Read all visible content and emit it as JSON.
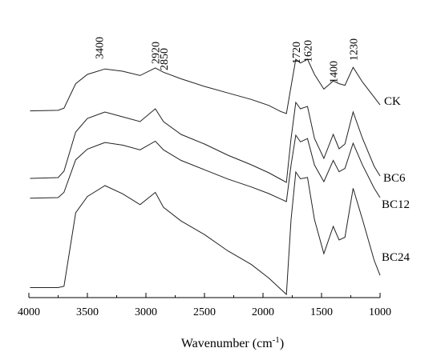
{
  "chart_data": {
    "type": "line",
    "xlabel": "Wavenumber (cm",
    "xlabel_sup": "-1",
    "xlabel_close": ")",
    "xlim": [
      4000,
      1000
    ],
    "x_reversed": true,
    "x_ticks": [
      4000,
      3500,
      3000,
      2500,
      2000,
      1500,
      1000
    ],
    "y_axis_visible": false,
    "grid": false,
    "peak_labels": [
      "3400",
      "2920",
      "2850",
      "1720",
      "1620",
      "1400",
      "1230"
    ],
    "peak_positions": [
      3400,
      2920,
      2850,
      1720,
      1620,
      1400,
      1230
    ],
    "series": [
      {
        "name": "CK",
        "points": [
          [
            3990,
            0.05
          ],
          [
            3750,
            0.06
          ],
          [
            3700,
            0.1
          ],
          [
            3600,
            0.55
          ],
          [
            3500,
            0.72
          ],
          [
            3350,
            0.82
          ],
          [
            3200,
            0.78
          ],
          [
            3050,
            0.7
          ],
          [
            2920,
            0.84
          ],
          [
            2850,
            0.76
          ],
          [
            2700,
            0.64
          ],
          [
            2500,
            0.5
          ],
          [
            2300,
            0.38
          ],
          [
            2100,
            0.26
          ],
          [
            1950,
            0.15
          ],
          [
            1850,
            0.04
          ],
          [
            1800,
            0.0
          ],
          [
            1760,
            0.5
          ],
          [
            1720,
            1.0
          ],
          [
            1680,
            0.93
          ],
          [
            1620,
            1.0
          ],
          [
            1560,
            0.72
          ],
          [
            1480,
            0.45
          ],
          [
            1400,
            0.6
          ],
          [
            1350,
            0.55
          ],
          [
            1300,
            0.52
          ],
          [
            1230,
            0.85
          ],
          [
            1150,
            0.58
          ],
          [
            1050,
            0.3
          ],
          [
            1000,
            0.16
          ]
        ]
      },
      {
        "name": "BC6",
        "points": [
          [
            3990,
            0.05
          ],
          [
            3750,
            0.06
          ],
          [
            3700,
            0.14
          ],
          [
            3600,
            0.63
          ],
          [
            3500,
            0.8
          ],
          [
            3350,
            0.88
          ],
          [
            3200,
            0.82
          ],
          [
            3050,
            0.76
          ],
          [
            2920,
            0.92
          ],
          [
            2850,
            0.76
          ],
          [
            2700,
            0.6
          ],
          [
            2500,
            0.48
          ],
          [
            2300,
            0.34
          ],
          [
            2100,
            0.22
          ],
          [
            1950,
            0.12
          ],
          [
            1850,
            0.04
          ],
          [
            1800,
            0.0
          ],
          [
            1760,
            0.55
          ],
          [
            1720,
            1.0
          ],
          [
            1680,
            0.92
          ],
          [
            1620,
            0.95
          ],
          [
            1560,
            0.55
          ],
          [
            1480,
            0.3
          ],
          [
            1400,
            0.6
          ],
          [
            1350,
            0.42
          ],
          [
            1300,
            0.48
          ],
          [
            1230,
            0.88
          ],
          [
            1150,
            0.55
          ],
          [
            1050,
            0.2
          ],
          [
            1000,
            0.08
          ]
        ]
      },
      {
        "name": "BC12",
        "points": [
          [
            3990,
            0.05
          ],
          [
            3750,
            0.06
          ],
          [
            3700,
            0.14
          ],
          [
            3600,
            0.63
          ],
          [
            3500,
            0.79
          ],
          [
            3350,
            0.89
          ],
          [
            3200,
            0.85
          ],
          [
            3050,
            0.78
          ],
          [
            2920,
            0.91
          ],
          [
            2850,
            0.78
          ],
          [
            2700,
            0.62
          ],
          [
            2500,
            0.48
          ],
          [
            2300,
            0.34
          ],
          [
            2100,
            0.22
          ],
          [
            1950,
            0.12
          ],
          [
            1850,
            0.04
          ],
          [
            1800,
            0.0
          ],
          [
            1760,
            0.55
          ],
          [
            1720,
            1.0
          ],
          [
            1680,
            0.9
          ],
          [
            1620,
            0.95
          ],
          [
            1560,
            0.55
          ],
          [
            1480,
            0.3
          ],
          [
            1400,
            0.62
          ],
          [
            1350,
            0.45
          ],
          [
            1300,
            0.5
          ],
          [
            1230,
            0.88
          ],
          [
            1150,
            0.55
          ],
          [
            1050,
            0.2
          ],
          [
            1000,
            0.06
          ]
        ]
      },
      {
        "name": "BC24",
        "points": [
          [
            3990,
            0.05
          ],
          [
            3750,
            0.05
          ],
          [
            3700,
            0.06
          ],
          [
            3600,
            0.6
          ],
          [
            3500,
            0.72
          ],
          [
            3350,
            0.8
          ],
          [
            3200,
            0.74
          ],
          [
            3050,
            0.66
          ],
          [
            2920,
            0.75
          ],
          [
            2850,
            0.64
          ],
          [
            2700,
            0.54
          ],
          [
            2500,
            0.44
          ],
          [
            2300,
            0.32
          ],
          [
            2100,
            0.22
          ],
          [
            1950,
            0.12
          ],
          [
            1850,
            0.04
          ],
          [
            1800,
            0.0
          ],
          [
            1760,
            0.55
          ],
          [
            1720,
            0.9
          ],
          [
            1680,
            0.85
          ],
          [
            1620,
            0.86
          ],
          [
            1560,
            0.55
          ],
          [
            1480,
            0.3
          ],
          [
            1400,
            0.5
          ],
          [
            1350,
            0.4
          ],
          [
            1300,
            0.42
          ],
          [
            1230,
            0.78
          ],
          [
            1150,
            0.55
          ],
          [
            1050,
            0.25
          ],
          [
            1000,
            0.14
          ]
        ]
      }
    ]
  }
}
